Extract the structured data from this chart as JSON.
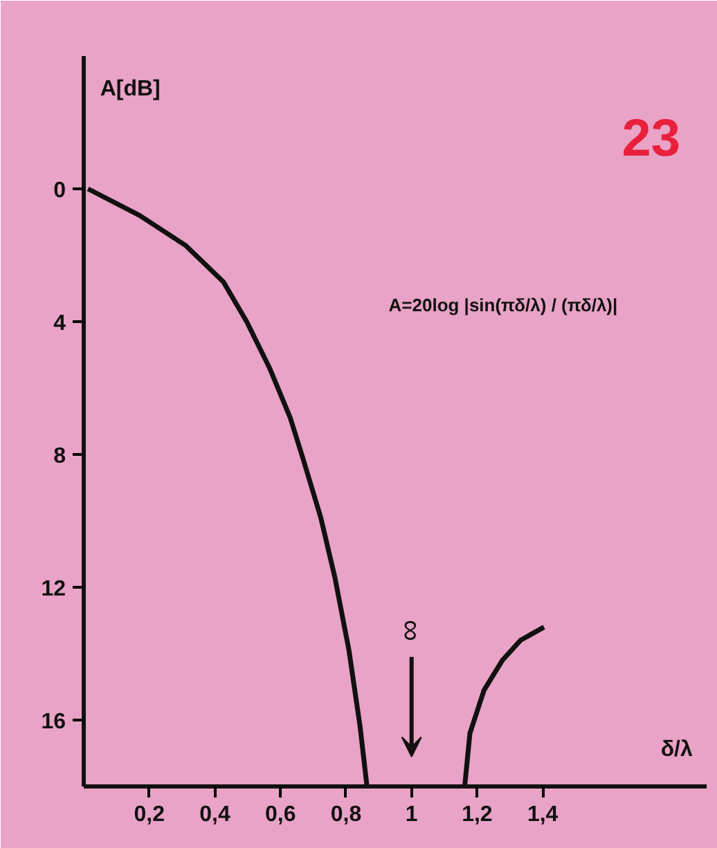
{
  "chart_data": {
    "type": "line",
    "xlabel": "δ/λ",
    "ylabel": "A[dB]",
    "xlim": [
      0,
      1.9
    ],
    "ylim": [
      18,
      -4
    ],
    "xticks": [
      {
        "value": 0.2,
        "label": "0,2"
      },
      {
        "value": 0.4,
        "label": "0,4"
      },
      {
        "value": 0.6,
        "label": "0,6"
      },
      {
        "value": 0.8,
        "label": "0,8"
      },
      {
        "value": 1,
        "label": "1"
      },
      {
        "value": 1.2,
        "label": "1,2"
      },
      {
        "value": 1.4,
        "label": "1,4"
      }
    ],
    "yticks": [
      0,
      4,
      8,
      12,
      16
    ],
    "grid": false,
    "marker": "none",
    "line_style": "solid",
    "series": [
      {
        "color": "#111111",
        "x": [
          0.013,
          0.17,
          0.31,
          0.426,
          0.497,
          0.567,
          0.63,
          0.668,
          0.723,
          0.766,
          0.809,
          0.843,
          0.864
        ],
        "values": [
          0,
          0.8,
          1.7,
          2.8,
          4.0,
          5.4,
          6.9,
          8.1,
          9.9,
          11.7,
          13.9,
          16.2,
          18.0
        ]
      },
      {
        "color": "#111111",
        "x": [
          1.162,
          1.178,
          1.221,
          1.277,
          1.332,
          1.404
        ],
        "values": [
          18.0,
          16.4,
          15.1,
          14.2,
          13.6,
          13.2
        ]
      }
    ],
    "annotations": [
      "23",
      "∞",
      "A=20log |sin(πδ/λ) / (πδ/λ)|"
    ]
  }
}
